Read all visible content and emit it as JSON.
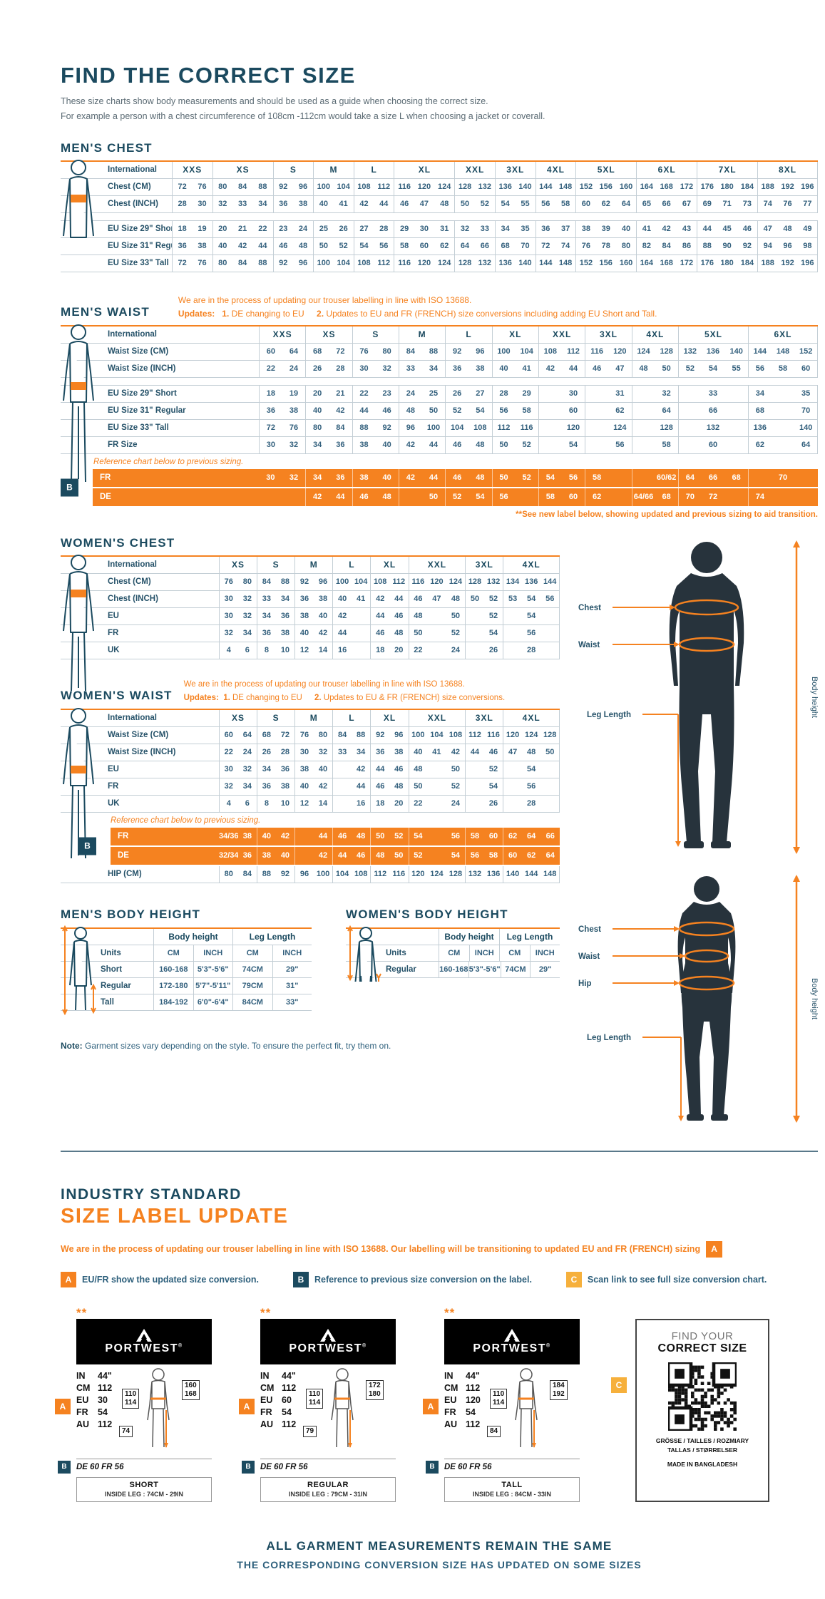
{
  "page": {
    "title": "FIND THE CORRECT SIZE",
    "subtitle1": "These size charts show body measurements and should be used as a guide when choosing the correct size.",
    "subtitle2": "For example a person with a chest circumference of 108cm -112cm would take a size L when choosing a jacket or coverall."
  },
  "colors": {
    "accent": "#f58220",
    "heading": "#1b4a5f",
    "badge_b": "#1b4a5f",
    "badge_c": "#f6b03c"
  },
  "mens_chest": {
    "heading": "MEN'S CHEST",
    "header_label": "International",
    "groups": [
      {
        "l": "XXS",
        "s": 2
      },
      {
        "l": "XS",
        "s": 3
      },
      {
        "l": "S",
        "s": 2
      },
      {
        "l": "M",
        "s": 2
      },
      {
        "l": "L",
        "s": 2
      },
      {
        "l": "XL",
        "s": 3
      },
      {
        "l": "XXL",
        "s": 2
      },
      {
        "l": "3XL",
        "s": 2
      },
      {
        "l": "4XL",
        "s": 2
      },
      {
        "l": "5XL",
        "s": 3
      },
      {
        "l": "6XL",
        "s": 3
      },
      {
        "l": "7XL",
        "s": 3
      },
      {
        "l": "8XL",
        "s": 3
      }
    ],
    "rows": [
      {
        "label": "Chest (CM)",
        "cells": [
          "72",
          "76",
          "80",
          "84",
          "88",
          "92",
          "96",
          "100",
          "104",
          "108",
          "112",
          "116",
          "120",
          "124",
          "128",
          "132",
          "136",
          "140",
          "144",
          "148",
          "152",
          "156",
          "160",
          "164",
          "168",
          "172",
          "176",
          "180",
          "184",
          "188",
          "192",
          "196"
        ]
      },
      {
        "label": "Chest (INCH)",
        "cells": [
          "28",
          "30",
          "32",
          "33",
          "34",
          "36",
          "38",
          "40",
          "41",
          "42",
          "44",
          "46",
          "47",
          "48",
          "50",
          "52",
          "54",
          "55",
          "56",
          "58",
          "60",
          "62",
          "64",
          "65",
          "66",
          "67",
          "69",
          "71",
          "73",
          "74",
          "76",
          "77"
        ]
      },
      {
        "gap": true
      },
      {
        "label": "EU Size 29\" Short",
        "cells": [
          "18",
          "19",
          "20",
          "21",
          "22",
          "23",
          "24",
          "25",
          "26",
          "27",
          "28",
          "29",
          "30",
          "31",
          "32",
          "33",
          "34",
          "35",
          "36",
          "37",
          "38",
          "39",
          "40",
          "41",
          "42",
          "43",
          "44",
          "45",
          "46",
          "47",
          "48",
          "49"
        ]
      },
      {
        "label": "EU Size 31\" Regular",
        "cells": [
          "36",
          "38",
          "40",
          "42",
          "44",
          "46",
          "48",
          "50",
          "52",
          "54",
          "56",
          "58",
          "60",
          "62",
          "64",
          "66",
          "68",
          "70",
          "72",
          "74",
          "76",
          "78",
          "80",
          "82",
          "84",
          "86",
          "88",
          "90",
          "92",
          "94",
          "96",
          "98"
        ]
      },
      {
        "label": "EU Size 33\" Tall",
        "cells": [
          "72",
          "76",
          "80",
          "84",
          "88",
          "92",
          "96",
          "100",
          "104",
          "108",
          "112",
          "116",
          "120",
          "124",
          "128",
          "132",
          "136",
          "140",
          "144",
          "148",
          "152",
          "156",
          "160",
          "164",
          "168",
          "172",
          "176",
          "180",
          "184",
          "188",
          "192",
          "196"
        ]
      }
    ]
  },
  "mens_waist": {
    "heading": "MEN'S WAIST",
    "header_label": "International",
    "note_line1": "We are in the process of updating our trouser labelling in line with ISO 13688.",
    "updates_label": "Updates:",
    "update1_num": "1.",
    "update1_text": "DE changing to EU",
    "update2_num": "2.",
    "update2_text": "Updates to EU and FR (FRENCH) size conversions including adding EU Short and Tall.",
    "groups": [
      {
        "l": "XXS",
        "s": 2
      },
      {
        "l": "XS",
        "s": 2
      },
      {
        "l": "S",
        "s": 2
      },
      {
        "l": "M",
        "s": 2
      },
      {
        "l": "L",
        "s": 2
      },
      {
        "l": "XL",
        "s": 2
      },
      {
        "l": "XXL",
        "s": 2
      },
      {
        "l": "3XL",
        "s": 2
      },
      {
        "l": "4XL",
        "s": 2
      },
      {
        "l": "5XL",
        "s": 3
      },
      {
        "l": "6XL",
        "s": 3
      }
    ],
    "rows": [
      {
        "label": "Waist Size (CM)",
        "cells": [
          "60",
          "64",
          "68",
          "72",
          "76",
          "80",
          "84",
          "88",
          "92",
          "96",
          "100",
          "104",
          "108",
          "112",
          "116",
          "120",
          "124",
          "128",
          "132",
          "136",
          "140",
          "144",
          "148",
          "152"
        ]
      },
      {
        "label": "Waist Size (INCH)",
        "cells": [
          "22",
          "24",
          "26",
          "28",
          "30",
          "32",
          "33",
          "34",
          "36",
          "38",
          "40",
          "41",
          "42",
          "44",
          "46",
          "47",
          "48",
          "50",
          "52",
          "54",
          "55",
          "56",
          "58",
          "60"
        ]
      },
      {
        "gap": true
      },
      {
        "label": "EU Size 29\" Short",
        "cells": [
          "18",
          "19",
          "20",
          "21",
          "22",
          "23",
          "24",
          "25",
          "26",
          "27",
          "28",
          "29",
          "",
          "30",
          "",
          "31",
          "",
          "32",
          "",
          "33",
          "",
          "34",
          "",
          "35"
        ]
      },
      {
        "label": "EU Size 31\" Regular",
        "cells": [
          "36",
          "38",
          "40",
          "42",
          "44",
          "46",
          "48",
          "50",
          "52",
          "54",
          "56",
          "58",
          "",
          "60",
          "",
          "62",
          "",
          "64",
          "",
          "66",
          "",
          "68",
          "",
          "70"
        ]
      },
      {
        "label": "EU Size 33\" Tall",
        "cells": [
          "72",
          "76",
          "80",
          "84",
          "88",
          "92",
          "96",
          "100",
          "104",
          "108",
          "112",
          "116",
          "",
          "120",
          "",
          "124",
          "",
          "128",
          "",
          "132",
          "",
          "136",
          "",
          "140"
        ]
      },
      {
        "label": "FR Size",
        "cells": [
          "30",
          "32",
          "34",
          "36",
          "38",
          "40",
          "42",
          "44",
          "46",
          "48",
          "50",
          "52",
          "",
          "54",
          "",
          "56",
          "",
          "58",
          "",
          "60",
          "",
          "62",
          "",
          "64"
        ]
      }
    ],
    "ref_text": "Reference chart below to previous sizing.",
    "orange_rows": [
      {
        "label": "FR",
        "cells": [
          "30",
          "32",
          "34",
          "36",
          "38",
          "40",
          "42",
          "44",
          "46",
          "48",
          "50",
          "52",
          "54",
          "56",
          "58",
          "",
          "",
          "60/62",
          "64",
          "66",
          "68",
          "",
          "70",
          ""
        ]
      },
      {
        "label": "DE",
        "cells": [
          "",
          "",
          "42",
          "44",
          "46",
          "48",
          "",
          "50",
          "52",
          "54",
          "56",
          "",
          "58",
          "60",
          "62",
          "",
          "64/66",
          "68",
          "70",
          "72",
          "",
          "74",
          "",
          ""
        ]
      }
    ],
    "footnote": "**See new label below, showing updated and previous sizing to aid transition."
  },
  "womens_chest": {
    "heading": "WOMEN'S CHEST",
    "header_label": "International",
    "groups": [
      {
        "l": "XS",
        "s": 2
      },
      {
        "l": "S",
        "s": 2
      },
      {
        "l": "M",
        "s": 2
      },
      {
        "l": "L",
        "s": 2
      },
      {
        "l": "XL",
        "s": 2
      },
      {
        "l": "XXL",
        "s": 3
      },
      {
        "l": "3XL",
        "s": 2
      },
      {
        "l": "4XL",
        "s": 3
      }
    ],
    "rows": [
      {
        "label": "Chest (CM)",
        "cells": [
          "76",
          "80",
          "84",
          "88",
          "92",
          "96",
          "100",
          "104",
          "108",
          "112",
          "116",
          "120",
          "124",
          "128",
          "132",
          "134",
          "136",
          "144"
        ]
      },
      {
        "label": "Chest (INCH)",
        "cells": [
          "30",
          "32",
          "33",
          "34",
          "36",
          "38",
          "40",
          "41",
          "42",
          "44",
          "46",
          "47",
          "48",
          "50",
          "52",
          "53",
          "54",
          "56"
        ]
      },
      {
        "label": "EU",
        "cells": [
          "30",
          "32",
          "34",
          "36",
          "38",
          "40",
          "42",
          "",
          "44",
          "46",
          "48",
          "",
          "50",
          "",
          "52",
          "",
          "54",
          ""
        ]
      },
      {
        "label": "FR",
        "cells": [
          "32",
          "34",
          "36",
          "38",
          "40",
          "42",
          "44",
          "",
          "46",
          "48",
          "50",
          "",
          "52",
          "",
          "54",
          "",
          "56",
          ""
        ]
      },
      {
        "label": "UK",
        "cells": [
          "4",
          "6",
          "8",
          "10",
          "12",
          "14",
          "16",
          "",
          "18",
          "20",
          "22",
          "",
          "24",
          "",
          "26",
          "",
          "28",
          ""
        ]
      }
    ]
  },
  "womens_waist": {
    "heading": "WOMEN'S WAIST",
    "header_label": "International",
    "note_line1": "We are in the process of updating our trouser labelling in line with ISO 13688.",
    "updates_label": "Updates:",
    "update1_num": "1.",
    "update1_text": "DE changing to EU",
    "update2_num": "2.",
    "update2_text": "Updates to EU & FR (FRENCH) size conversions.",
    "groups": [
      {
        "l": "XS",
        "s": 2
      },
      {
        "l": "S",
        "s": 2
      },
      {
        "l": "M",
        "s": 2
      },
      {
        "l": "L",
        "s": 2
      },
      {
        "l": "XL",
        "s": 2
      },
      {
        "l": "XXL",
        "s": 3
      },
      {
        "l": "3XL",
        "s": 2
      },
      {
        "l": "4XL",
        "s": 3
      }
    ],
    "rows": [
      {
        "label": "Waist Size (CM)",
        "cells": [
          "60",
          "64",
          "68",
          "72",
          "76",
          "80",
          "84",
          "88",
          "92",
          "96",
          "100",
          "104",
          "108",
          "112",
          "116",
          "120",
          "124",
          "128"
        ]
      },
      {
        "label": "Waist Size (INCH)",
        "cells": [
          "22",
          "24",
          "26",
          "28",
          "30",
          "32",
          "33",
          "34",
          "36",
          "38",
          "40",
          "41",
          "42",
          "44",
          "46",
          "47",
          "48",
          "50"
        ]
      },
      {
        "label": "EU",
        "cells": [
          "30",
          "32",
          "34",
          "36",
          "38",
          "40",
          "",
          "42",
          "44",
          "46",
          "48",
          "",
          "50",
          "",
          "52",
          "",
          "54",
          ""
        ]
      },
      {
        "label": "FR",
        "cells": [
          "32",
          "34",
          "36",
          "38",
          "40",
          "42",
          "",
          "44",
          "46",
          "48",
          "50",
          "",
          "52",
          "",
          "54",
          "",
          "56",
          ""
        ]
      },
      {
        "label": "UK",
        "cells": [
          "4",
          "6",
          "8",
          "10",
          "12",
          "14",
          "",
          "16",
          "18",
          "20",
          "22",
          "",
          "24",
          "",
          "26",
          "",
          "28",
          ""
        ]
      }
    ],
    "ref_text": "Reference chart below to previous sizing.",
    "orange_rows": [
      {
        "label": "FR",
        "cells": [
          "34/36",
          "38",
          "40",
          "42",
          "",
          "44",
          "46",
          "48",
          "50",
          "52",
          "54",
          "",
          "56",
          "58",
          "60",
          "62",
          "64",
          "66"
        ]
      },
      {
        "label": "DE",
        "cells": [
          "32/34",
          "36",
          "38",
          "40",
          "",
          "42",
          "44",
          "46",
          "48",
          "50",
          "52",
          "",
          "54",
          "56",
          "58",
          "60",
          "62",
          "64"
        ]
      }
    ],
    "hip_row": {
      "label": "HIP (CM)",
      "cells": [
        "80",
        "84",
        "88",
        "92",
        "96",
        "100",
        "104",
        "108",
        "112",
        "116",
        "120",
        "124",
        "128",
        "132",
        "136",
        "140",
        "144",
        "148"
      ]
    }
  },
  "mens_body_height": {
    "heading": "MEN'S BODY HEIGHT",
    "col_groups": [
      "Body height",
      "Leg Length"
    ],
    "units_row": [
      "Units",
      "CM",
      "INCH",
      "CM",
      "INCH"
    ],
    "rows": [
      [
        "Short",
        "160-168",
        "5'3\"-5'6\"",
        "74CM",
        "29\""
      ],
      [
        "Regular",
        "172-180",
        "5'7\"-5'11\"",
        "79CM",
        "31\""
      ],
      [
        "Tall",
        "184-192",
        "6'0\"-6'4\"",
        "84CM",
        "33\""
      ]
    ]
  },
  "womens_body_height": {
    "heading": "WOMEN'S BODY HEIGHT",
    "col_groups": [
      "Body height",
      "Leg Length"
    ],
    "units_row": [
      "Units",
      "CM",
      "INCH",
      "CM",
      "INCH"
    ],
    "rows": [
      [
        "Regular",
        "160-168",
        "5'3\"-5'6\"",
        "74CM",
        "29\""
      ]
    ]
  },
  "note": {
    "bold": "Note:",
    "text": " Garment sizes vary depending on the style. To ensure the perfect fit, try them on."
  },
  "figures": {
    "man": {
      "chest": "Chest",
      "waist": "Waist",
      "leg": "Leg Length",
      "height": "Body height"
    },
    "woman": {
      "chest": "Chest",
      "waist": "Waist",
      "hip": "Hip",
      "leg": "Leg Length",
      "height": "Body height"
    }
  },
  "industry": {
    "line1": "INDUSTRY STANDARD",
    "line2": "SIZE LABEL UPDATE",
    "para": "We are in the process of updating our trouser labelling in line with ISO 13688. Our labelling will be transitioning to updated EU and FR (FRENCH) sizing",
    "para_badge": "A",
    "legend": [
      {
        "badge": "A",
        "text": "EU/FR show the updated size conversion."
      },
      {
        "badge": "B",
        "text": "Reference to previous size conversion on the label."
      },
      {
        "badge": "C",
        "text": "Scan link to see full size conversion chart."
      }
    ]
  },
  "cards": [
    {
      "stars": "**",
      "brand": "PORTWEST",
      "reg": "®",
      "sizes": [
        {
          "k": "IN",
          "v": "44\""
        },
        {
          "k": "CM",
          "v": "112"
        },
        {
          "k": "EU",
          "v": "30"
        },
        {
          "k": "FR",
          "v": "54"
        },
        {
          "k": "AU",
          "v": "112"
        }
      ],
      "a_badge": "A",
      "b_badge": "B",
      "waist_box": [
        "110",
        "114"
      ],
      "height_box": [
        "160",
        "168"
      ],
      "leg_box": "74",
      "b_ref": "DE 60 FR 56",
      "fit": "SHORT",
      "inside_leg": "INSIDE LEG : 74CM - 29IN"
    },
    {
      "stars": "**",
      "brand": "PORTWEST",
      "reg": "®",
      "sizes": [
        {
          "k": "IN",
          "v": "44\""
        },
        {
          "k": "CM",
          "v": "112"
        },
        {
          "k": "EU",
          "v": "60"
        },
        {
          "k": "FR",
          "v": "54"
        },
        {
          "k": "AU",
          "v": "112"
        }
      ],
      "a_badge": "A",
      "b_badge": "B",
      "waist_box": [
        "110",
        "114"
      ],
      "height_box": [
        "172",
        "180"
      ],
      "leg_box": "79",
      "b_ref": "DE 60 FR 56",
      "fit": "REGULAR",
      "inside_leg": "INSIDE LEG : 79CM - 31IN"
    },
    {
      "stars": "**",
      "brand": "PORTWEST",
      "reg": "®",
      "sizes": [
        {
          "k": "IN",
          "v": "44\""
        },
        {
          "k": "CM",
          "v": "112"
        },
        {
          "k": "EU",
          "v": "120"
        },
        {
          "k": "FR",
          "v": "54"
        },
        {
          "k": "AU",
          "v": "112"
        }
      ],
      "a_badge": "A",
      "b_badge": "B",
      "waist_box": [
        "110",
        "114"
      ],
      "height_box": [
        "184",
        "192"
      ],
      "leg_box": "84",
      "b_ref": "DE 60 FR 56",
      "fit": "TALL",
      "inside_leg": "INSIDE LEG : 84CM - 33IN"
    }
  ],
  "qr_card": {
    "badge": "C",
    "line1": "FIND YOUR",
    "line2": "CORRECT SIZE",
    "langs1": "GRÖSSE / TAILLES / ROZMIARY",
    "langs2": "TALLAS / STØRRELSER",
    "made": "MADE IN BANGLADESH"
  },
  "footer": {
    "line1": "ALL GARMENT MEASUREMENTS REMAIN THE SAME",
    "line2": "THE CORRESPONDING CONVERSION SIZE HAS UPDATED ON SOME SIZES"
  }
}
